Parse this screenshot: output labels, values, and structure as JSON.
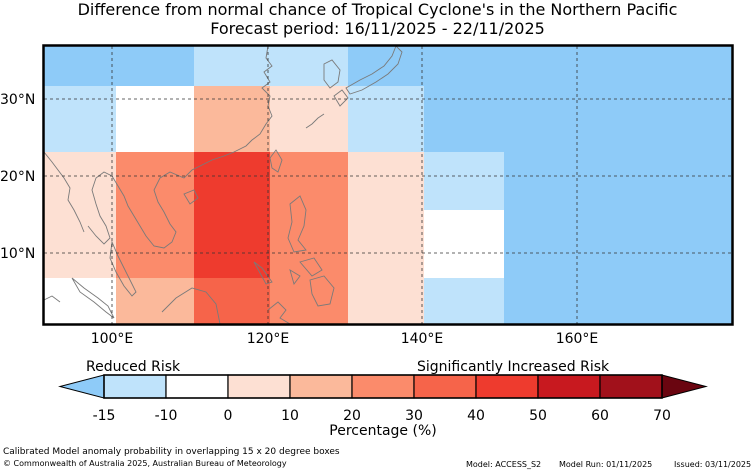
{
  "title": {
    "line1": "Difference from normal chance of Tropical Cyclone's in the Northern Pacific",
    "line2": "Forecast period: 16/11/2025 - 22/11/2025"
  },
  "map": {
    "lat_labels": [
      "30°N",
      "20°N",
      "10°N"
    ],
    "lon_labels": [
      "100°E",
      "120°E",
      "140°E",
      "160°E"
    ],
    "region": "Northern Pacific",
    "grid_cells": [
      {
        "lon": [
          90,
          110
        ],
        "lat": [
          30,
          36
        ],
        "category": "-15 to -10"
      },
      {
        "lon": [
          110,
          130
        ],
        "lat": [
          30,
          36
        ],
        "category": "-10 to 0"
      },
      {
        "lon": [
          130,
          140
        ],
        "lat": [
          30,
          36
        ],
        "category": "-10 to 0"
      },
      {
        "lon": [
          140,
          180
        ],
        "lat": [
          30,
          36
        ],
        "category": "-15 to -10"
      },
      {
        "lon": [
          90,
          100
        ],
        "lat": [
          22,
          30
        ],
        "category": "-10 to 0"
      },
      {
        "lon": [
          100,
          110
        ],
        "lat": [
          22,
          30
        ],
        "category": "0"
      },
      {
        "lon": [
          110,
          120
        ],
        "lat": [
          22,
          30
        ],
        "category": "10 to 20"
      },
      {
        "lon": [
          120,
          130
        ],
        "lat": [
          22,
          30
        ],
        "category": "0 to 10"
      },
      {
        "lon": [
          130,
          140
        ],
        "lat": [
          22,
          30
        ],
        "category": "-10 to 0"
      },
      {
        "lon": [
          140,
          180
        ],
        "lat": [
          22,
          30
        ],
        "category": "-15 to -10"
      },
      {
        "lon": [
          90,
          100
        ],
        "lat": [
          6,
          22
        ],
        "category": "0 to 10"
      },
      {
        "lon": [
          100,
          110
        ],
        "lat": [
          6,
          22
        ],
        "category": "20 to 30"
      },
      {
        "lon": [
          110,
          120
        ],
        "lat": [
          6,
          22
        ],
        "category": "40 to 50"
      },
      {
        "lon": [
          120,
          130
        ],
        "lat": [
          6,
          22
        ],
        "category": "20 to 30"
      },
      {
        "lon": [
          130,
          140
        ],
        "lat": [
          6,
          22
        ],
        "category": "0 to 10"
      },
      {
        "lon": [
          140,
          150
        ],
        "lat": [
          14,
          22
        ],
        "category": "-10 to 0"
      },
      {
        "lon": [
          140,
          150
        ],
        "lat": [
          6,
          14
        ],
        "category": "0"
      },
      {
        "lon": [
          150,
          180
        ],
        "lat": [
          6,
          22
        ],
        "category": "-15 to -10"
      },
      {
        "lon": [
          90,
          100
        ],
        "lat": [
          1,
          6
        ],
        "category": "0"
      },
      {
        "lon": [
          100,
          110
        ],
        "lat": [
          1,
          6
        ],
        "category": "10 to 20"
      },
      {
        "lon": [
          110,
          120
        ],
        "lat": [
          1,
          6
        ],
        "category": "30 to 40"
      },
      {
        "lon": [
          120,
          130
        ],
        "lat": [
          1,
          6
        ],
        "category": "20 to 30"
      },
      {
        "lon": [
          130,
          140
        ],
        "lat": [
          1,
          6
        ],
        "category": "0 to 10"
      },
      {
        "lon": [
          140,
          150
        ],
        "lat": [
          1,
          6
        ],
        "category": "-10 to 0"
      },
      {
        "lon": [
          150,
          180
        ],
        "lat": [
          1,
          6
        ],
        "category": "-15 to -10"
      }
    ]
  },
  "legend": {
    "reduced_label": "Reduced Risk",
    "increased_label": "Significantly Increased Risk",
    "ticks": [
      "-15",
      "-10",
      "0",
      "10",
      "20",
      "30",
      "40",
      "50",
      "60",
      "70"
    ],
    "axis_label": "Percentage (%)",
    "colors": {
      "below_min": "#8ecbf8",
      "-15 to -10": "#bfe3fb",
      "-10 to 0": "#bfe3fb",
      "0": "#ffffff",
      "0 to 10": "#fde0d3",
      "10 to 20": "#fbb99b",
      "20 to 30": "#fb8b6b",
      "30 to 40": "#f6644a",
      "40 to 50": "#ee3b2e",
      "50 to 60": "#c8191f",
      "60 to 70": "#a1111b",
      "above_max": "#6a0510"
    },
    "bar_colors": [
      "#bfe3fb",
      "#ffffff",
      "#fde0d3",
      "#fbb99b",
      "#fb8b6b",
      "#f6644a",
      "#ee3b2e",
      "#c8191f",
      "#a1111b"
    ]
  },
  "footer": {
    "caption": "Calibrated Model anomaly probability in overlapping 15 x 20 degree boxes",
    "copyright": "© Commonwealth of Australia 2025, Australian Bureau of Meteorology",
    "model": "Model: ACCESS_S2",
    "model_run": "Model Run: 01/11/2025",
    "issued": "Issued: 03/11/2025"
  }
}
